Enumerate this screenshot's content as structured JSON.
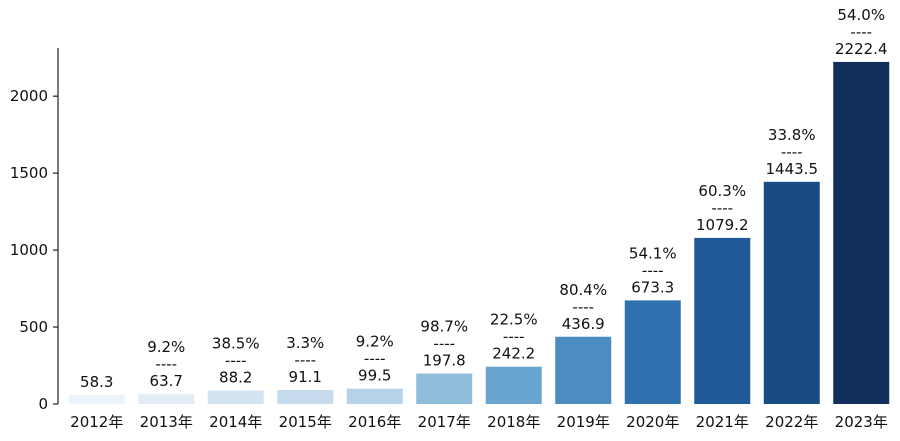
{
  "chart_data": {
    "type": "bar",
    "categories": [
      "2012年",
      "2013年",
      "2014年",
      "2015年",
      "2016年",
      "2017年",
      "2018年",
      "2019年",
      "2020年",
      "2021年",
      "2022年",
      "2023年"
    ],
    "values": [
      58.3,
      63.7,
      88.2,
      91.1,
      99.5,
      197.8,
      242.2,
      436.9,
      673.3,
      1079.2,
      1443.5,
      2222.4
    ],
    "growth": [
      "",
      "9.2%",
      "38.5%",
      "3.3%",
      "9.2%",
      "98.7%",
      "22.5%",
      "80.4%",
      "54.1%",
      "60.3%",
      "33.8%",
      "54.0%"
    ],
    "separator": "----",
    "yticks": [
      0,
      500,
      1000,
      1500,
      2000
    ],
    "ylim": [
      0,
      2300
    ],
    "title": "",
    "xlabel": "",
    "ylabel": "",
    "grid": false,
    "colors": [
      "#edf3fa",
      "#e2ecf6",
      "#d3e3f1",
      "#c6dbee",
      "#b6d2e9",
      "#8fbcda",
      "#6aa5cf",
      "#4b8cc2",
      "#2f71ae",
      "#205b98",
      "#194b84",
      "#12305e"
    ]
  }
}
